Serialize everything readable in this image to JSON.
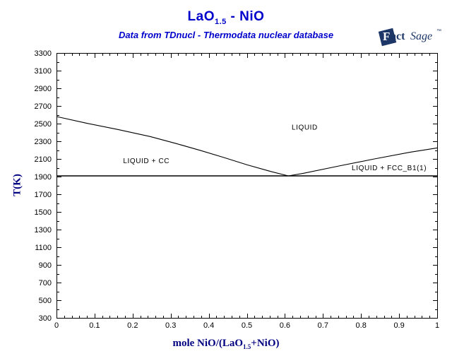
{
  "header": {
    "title_part1": "LaO",
    "title_subscript": "1.5",
    "title_part2": " - NiO",
    "subtitle": "Data from TDnucl - Thermodata nuclear database",
    "title_color": "#0000cc"
  },
  "logo": {
    "f": "F",
    "act": "act",
    "sage": "Sage",
    "tm": "™",
    "color": "#1c3667"
  },
  "chart_data": {
    "type": "line",
    "title": "LaO1.5 - NiO",
    "subtitle": "Data from TDnucl - Thermodata nuclear database",
    "xlabel": "mole NiO/(LaO1.5+NiO)",
    "xlabel_parts": {
      "part1": "mole NiO/(LaO",
      "subscript": "1.5",
      "part2": "+NiO)"
    },
    "ylabel": "T(K)",
    "xlim": [
      0,
      1
    ],
    "ylim": [
      300,
      3300
    ],
    "grid": false,
    "axis_color": "#000000",
    "axis_title_color": "#000080",
    "x_ticks": {
      "major_values": [
        0,
        0.1,
        0.2,
        0.3,
        0.4,
        0.5,
        0.6,
        0.7,
        0.8,
        0.9,
        1
      ],
      "labels": [
        "0",
        "0.1",
        "0.2",
        "0.3",
        "0.4",
        "0.5",
        "0.6",
        "0.7",
        "0.8",
        "0.9",
        "1"
      ],
      "minor_step": 0.02
    },
    "y_ticks": {
      "major_values": [
        300,
        500,
        700,
        900,
        1100,
        1300,
        1500,
        1700,
        1900,
        2100,
        2300,
        2500,
        2700,
        2900,
        3100,
        3300
      ],
      "labels": [
        "300",
        "500",
        "700",
        "900",
        "1100",
        "1300",
        "1500",
        "1700",
        "1900",
        "2100",
        "2300",
        "2500",
        "2700",
        "2900",
        "3100",
        "3300"
      ],
      "minor_step": 100
    },
    "series": [
      {
        "name": "liquidus",
        "color": "#000000",
        "width": 1.1,
        "points": [
          [
            0,
            2580
          ],
          [
            0.078,
            2506
          ],
          [
            0.161,
            2434
          ],
          [
            0.246,
            2354
          ],
          [
            0.315,
            2274
          ],
          [
            0.377,
            2198
          ],
          [
            0.439,
            2117
          ],
          [
            0.501,
            2033
          ],
          [
            0.563,
            1958
          ],
          [
            0.609,
            1908
          ],
          [
            0.649,
            1938
          ],
          [
            0.742,
            2020
          ],
          [
            0.835,
            2100
          ],
          [
            0.928,
            2175
          ],
          [
            1,
            2225
          ]
        ]
      },
      {
        "name": "eutectic-invariant-line",
        "color": "#000000",
        "width": 1.5,
        "points": [
          [
            0,
            1908
          ],
          [
            1,
            1908
          ]
        ]
      }
    ],
    "eutectic": {
      "x": 0.61,
      "T": 1908
    },
    "endpoints": {
      "LaO1.5_melting_K": 2580,
      "NiO_melting_K": 2225
    },
    "region_labels": [
      {
        "text": "LIQUID",
        "x": 0.652,
        "T": 2455
      },
      {
        "text": "LIQUID + CC",
        "x": 0.236,
        "T": 2075
      },
      {
        "text": "LIQUID + FCC_B1(1)",
        "x": 0.874,
        "T": 1995
      }
    ]
  }
}
